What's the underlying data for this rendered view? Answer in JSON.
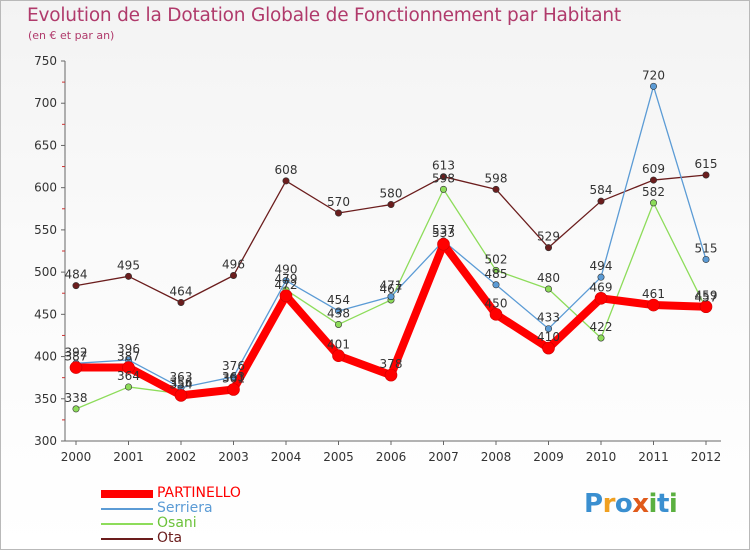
{
  "chart_data": {
    "type": "line",
    "title": "Evolution de la Dotation Globale de Fonctionnement par Habitant",
    "subtitle": "(en € et par an)",
    "x": [
      "2000",
      "2001",
      "2002",
      "2003",
      "2004",
      "2005",
      "2006",
      "2007",
      "2008",
      "2009",
      "2010",
      "2011",
      "2012"
    ],
    "ylim": [
      300,
      750
    ],
    "yticks": [
      "300",
      "350",
      "400",
      "450",
      "500",
      "550",
      "600",
      "650",
      "700",
      "750"
    ],
    "grid": false,
    "legend": "bottom-left",
    "series": [
      {
        "name": "PARTINELLO",
        "color": "#ff0000",
        "values": [
          387,
          387,
          354,
          361,
          472,
          401,
          378,
          533,
          450,
          410,
          469,
          461,
          459
        ],
        "labels": [
          "387",
          "387",
          "354",
          "361",
          "472",
          "401",
          "378",
          "533",
          "450",
          "410",
          "469",
          "461",
          "459"
        ]
      },
      {
        "name": "Serriera",
        "color": "#5b9bd5",
        "values": [
          392,
          396,
          363,
          376,
          490,
          454,
          471,
          537,
          485,
          433,
          494,
          720,
          515
        ],
        "labels": [
          "392",
          "396",
          "363",
          "376",
          "490",
          "454",
          "471",
          "537",
          "485",
          "433",
          "494",
          "720",
          "515"
        ]
      },
      {
        "name": "Osani",
        "color": "#8ddc5a",
        "values": [
          338,
          364,
          356,
          363,
          479,
          438,
          467,
          598,
          502,
          480,
          422,
          582,
          457
        ],
        "labels": [
          "338",
          "364",
          "356",
          "363",
          "479",
          "438",
          "467",
          "598",
          "502",
          "480",
          "422",
          "582",
          "457"
        ]
      },
      {
        "name": "Ota",
        "color": "#6b1d1d",
        "values": [
          484,
          495,
          464,
          496,
          608,
          570,
          580,
          613,
          598,
          529,
          584,
          609,
          615
        ],
        "labels": [
          "484",
          "495",
          "464",
          "496",
          "608",
          "570",
          "580",
          "613",
          "598",
          "529",
          "584",
          "609",
          "615"
        ]
      }
    ]
  },
  "logo": {
    "letters": [
      "P",
      "r",
      "o",
      "x",
      "i",
      "t",
      "i"
    ],
    "colors": [
      "#3a8fd0",
      "#f0a020",
      "#3a8fd0",
      "#e05a1a",
      "#5bb040",
      "#3a8fd0",
      "#5bb040"
    ],
    "text": "Proxiti"
  }
}
